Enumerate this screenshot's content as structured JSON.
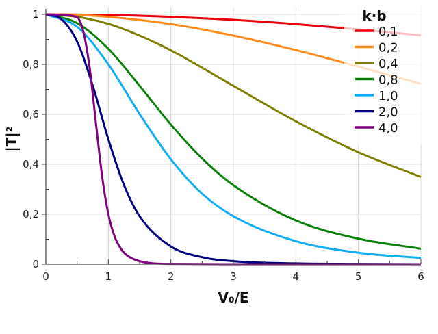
{
  "chart_data": {
    "type": "line",
    "xlabel": "V₀/E",
    "ylabel": "|T|²",
    "xlim": [
      0,
      6
    ],
    "ylim": [
      0,
      1
    ],
    "grid": true,
    "legend_title": "k·b",
    "legend_position": "top-right",
    "x_ticks": [
      "0",
      "1",
      "2",
      "3",
      "4",
      "5",
      "6"
    ],
    "y_ticks": [
      "0",
      "0,2",
      "0,4",
      "0,6",
      "0,8",
      "1"
    ],
    "series": [
      {
        "name": "0,1",
        "color": "#e8000b",
        "x": [
          0,
          0.5,
          1,
          2,
          3,
          4,
          5,
          6
        ],
        "y": [
          1,
          0.999,
          0.998,
          0.99,
          0.978,
          0.961,
          0.94,
          0.916
        ]
      },
      {
        "name": "0,2",
        "color": "#ff8c1a",
        "x": [
          0,
          0.5,
          1,
          2,
          3,
          4,
          5,
          6
        ],
        "y": [
          1,
          0.998,
          0.99,
          0.961,
          0.915,
          0.857,
          0.791,
          0.722
        ]
      },
      {
        "name": "0,4",
        "color": "#808000",
        "x": [
          0,
          0.5,
          1,
          1.5,
          2,
          3,
          4,
          5,
          6
        ],
        "y": [
          1,
          0.99,
          0.962,
          0.915,
          0.856,
          0.714,
          0.572,
          0.448,
          0.349
        ]
      },
      {
        "name": "0,8",
        "color": "#0a800a",
        "x": [
          0,
          0.5,
          1,
          1.5,
          2,
          2.5,
          3,
          4,
          5,
          6
        ],
        "y": [
          1,
          0.965,
          0.862,
          0.714,
          0.559,
          0.423,
          0.316,
          0.175,
          0.102,
          0.062
        ]
      },
      {
        "name": "1,0",
        "color": "#12adf5",
        "x": [
          0,
          0.5,
          1,
          1.5,
          2,
          2.5,
          3,
          4,
          5,
          6
        ],
        "y": [
          1,
          0.95,
          0.8,
          0.601,
          0.42,
          0.282,
          0.192,
          0.092,
          0.046,
          0.025
        ]
      },
      {
        "name": "2,0",
        "color": "#000080",
        "x": [
          0,
          0.25,
          0.5,
          0.75,
          1,
          1.25,
          1.5,
          2,
          2.5,
          3,
          4,
          5,
          6
        ],
        "y": [
          1,
          0.98,
          0.891,
          0.715,
          0.5,
          0.317,
          0.192,
          0.071,
          0.028,
          0.012,
          0.003,
          0.001,
          0
        ]
      },
      {
        "name": "4,0",
        "color": "#800080",
        "x": [
          0,
          0.25,
          0.5,
          0.6,
          0.7,
          0.8,
          0.9,
          1,
          1.1,
          1.2,
          1.3,
          1.5,
          2,
          3,
          6
        ],
        "y": [
          1,
          0.998,
          0.988,
          0.931,
          0.787,
          0.567,
          0.352,
          0.2,
          0.111,
          0.062,
          0.035,
          0.012,
          0.001,
          0,
          0
        ]
      }
    ]
  }
}
